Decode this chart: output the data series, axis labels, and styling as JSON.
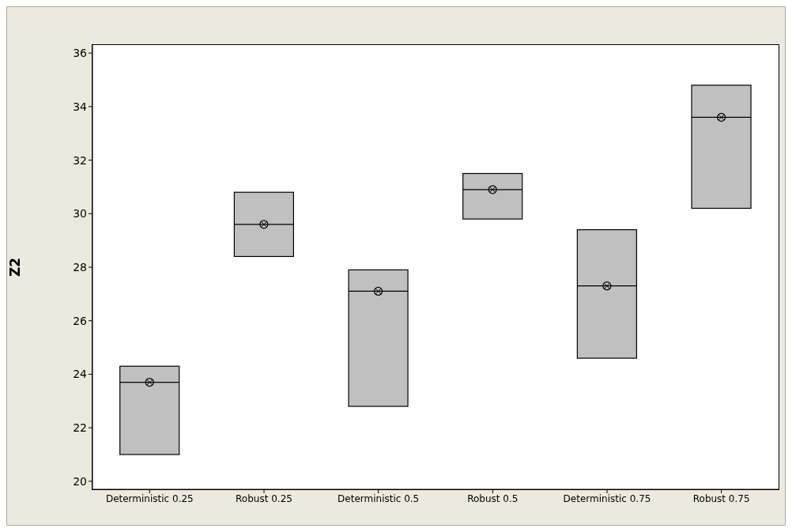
{
  "chart_data": {
    "type": "box",
    "ylabel": "Z2",
    "categories": [
      "Deterministic 0.25",
      "Robust 0.25",
      "Deterministic 0.5",
      "Robust 0.5",
      "Deterministic 0.75",
      "Robust 0.75"
    ],
    "ylim": [
      19.7,
      36.3
    ],
    "yticks": [
      20,
      22,
      24,
      26,
      28,
      30,
      32,
      34,
      36
    ],
    "grid": false,
    "color": "#c0c0c0",
    "boxes": [
      {
        "q1": 21.0,
        "median": 23.7,
        "q3": 24.3,
        "mean": 23.7
      },
      {
        "q1": 28.4,
        "median": 29.6,
        "q3": 30.8,
        "mean": 29.6
      },
      {
        "q1": 22.8,
        "median": 27.1,
        "q3": 27.9,
        "mean": 27.1
      },
      {
        "q1": 29.8,
        "median": 30.9,
        "q3": 31.5,
        "mean": 30.9
      },
      {
        "q1": 24.6,
        "median": 27.3,
        "q3": 29.4,
        "mean": 27.3
      },
      {
        "q1": 30.2,
        "median": 33.6,
        "q3": 34.8,
        "mean": 33.6
      }
    ]
  }
}
